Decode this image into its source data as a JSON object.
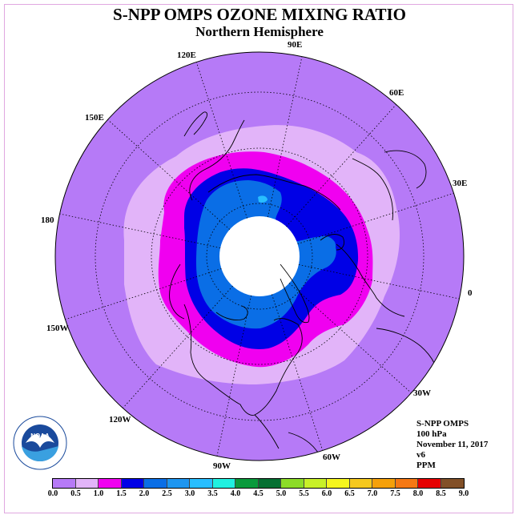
{
  "title": "S-NPP OMPS OZONE MIXING RATIO",
  "subtitle": "Northern Hemisphere",
  "longitude_labels": {
    "e90": "90E",
    "e60": "60E",
    "e30": "30E",
    "e0": "0",
    "w30": "30W",
    "w60": "60W",
    "w90": "90W",
    "w120": "120W",
    "w150": "150W",
    "e180": "180",
    "e150": "150E",
    "e120": "120E"
  },
  "info": {
    "instrument": "S-NPP OMPS",
    "pressure_level": "100 hPa",
    "date": "November 11, 2017",
    "version": "v6",
    "units": "PPM"
  },
  "logo": {
    "text": "NOAA",
    "ring_text": "NATIONAL OCEANIC AND ATMOSPHERIC ADMINISTRATION · U.S. DEPARTMENT OF COMMERCE"
  },
  "colorbar": {
    "ticks": [
      "0.0",
      "0.5",
      "1.0",
      "1.5",
      "2.0",
      "2.5",
      "3.0",
      "3.5",
      "4.0",
      "4.5",
      "5.0",
      "5.5",
      "6.0",
      "6.5",
      "7.0",
      "7.5",
      "8.0",
      "8.5",
      "9.0"
    ],
    "colors": [
      "#b67af7",
      "#e2b4f9",
      "#f000f0",
      "#0000e6",
      "#0a6ee6",
      "#1e96f0",
      "#28beff",
      "#20f0e0",
      "#0a9a3c",
      "#067032",
      "#8cdc28",
      "#c8f028",
      "#f5f51e",
      "#f5c81e",
      "#f5a00a",
      "#f57814",
      "#e60000",
      "#825028"
    ]
  },
  "map_colors": {
    "background_ozone": "#b67af7",
    "ozone_0_5": "#e2b4f9",
    "ozone_1_0": "#f000f0",
    "ozone_1_5": "#0000e6",
    "ozone_2_0": "#0a6ee6",
    "ozone_3_0": "#28beff",
    "no_data": "#ffffff"
  }
}
